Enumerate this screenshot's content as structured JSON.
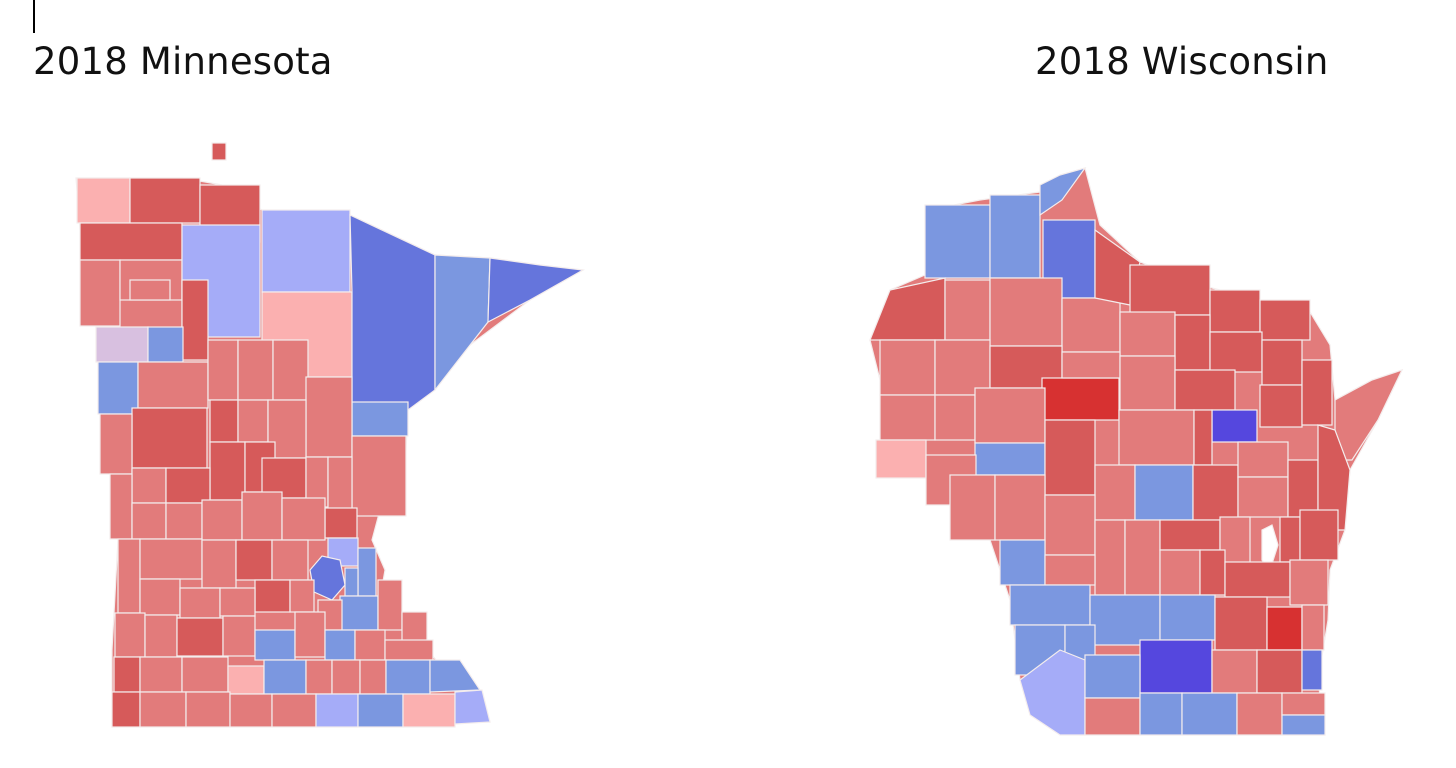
{
  "palette": {
    "r1": "#fbb0b0",
    "r2": "#e27b7b",
    "r3": "#d65a5a",
    "r4": "#d73131",
    "b1": "#a5acf8",
    "b2": "#7b97e0",
    "b3": "#6575dc",
    "b4": "#5547de",
    "tie": "#d8c0e0"
  },
  "maps": [
    {
      "title": "2018 Minnesota"
    },
    {
      "title": "2018 Wisconsin"
    }
  ]
}
